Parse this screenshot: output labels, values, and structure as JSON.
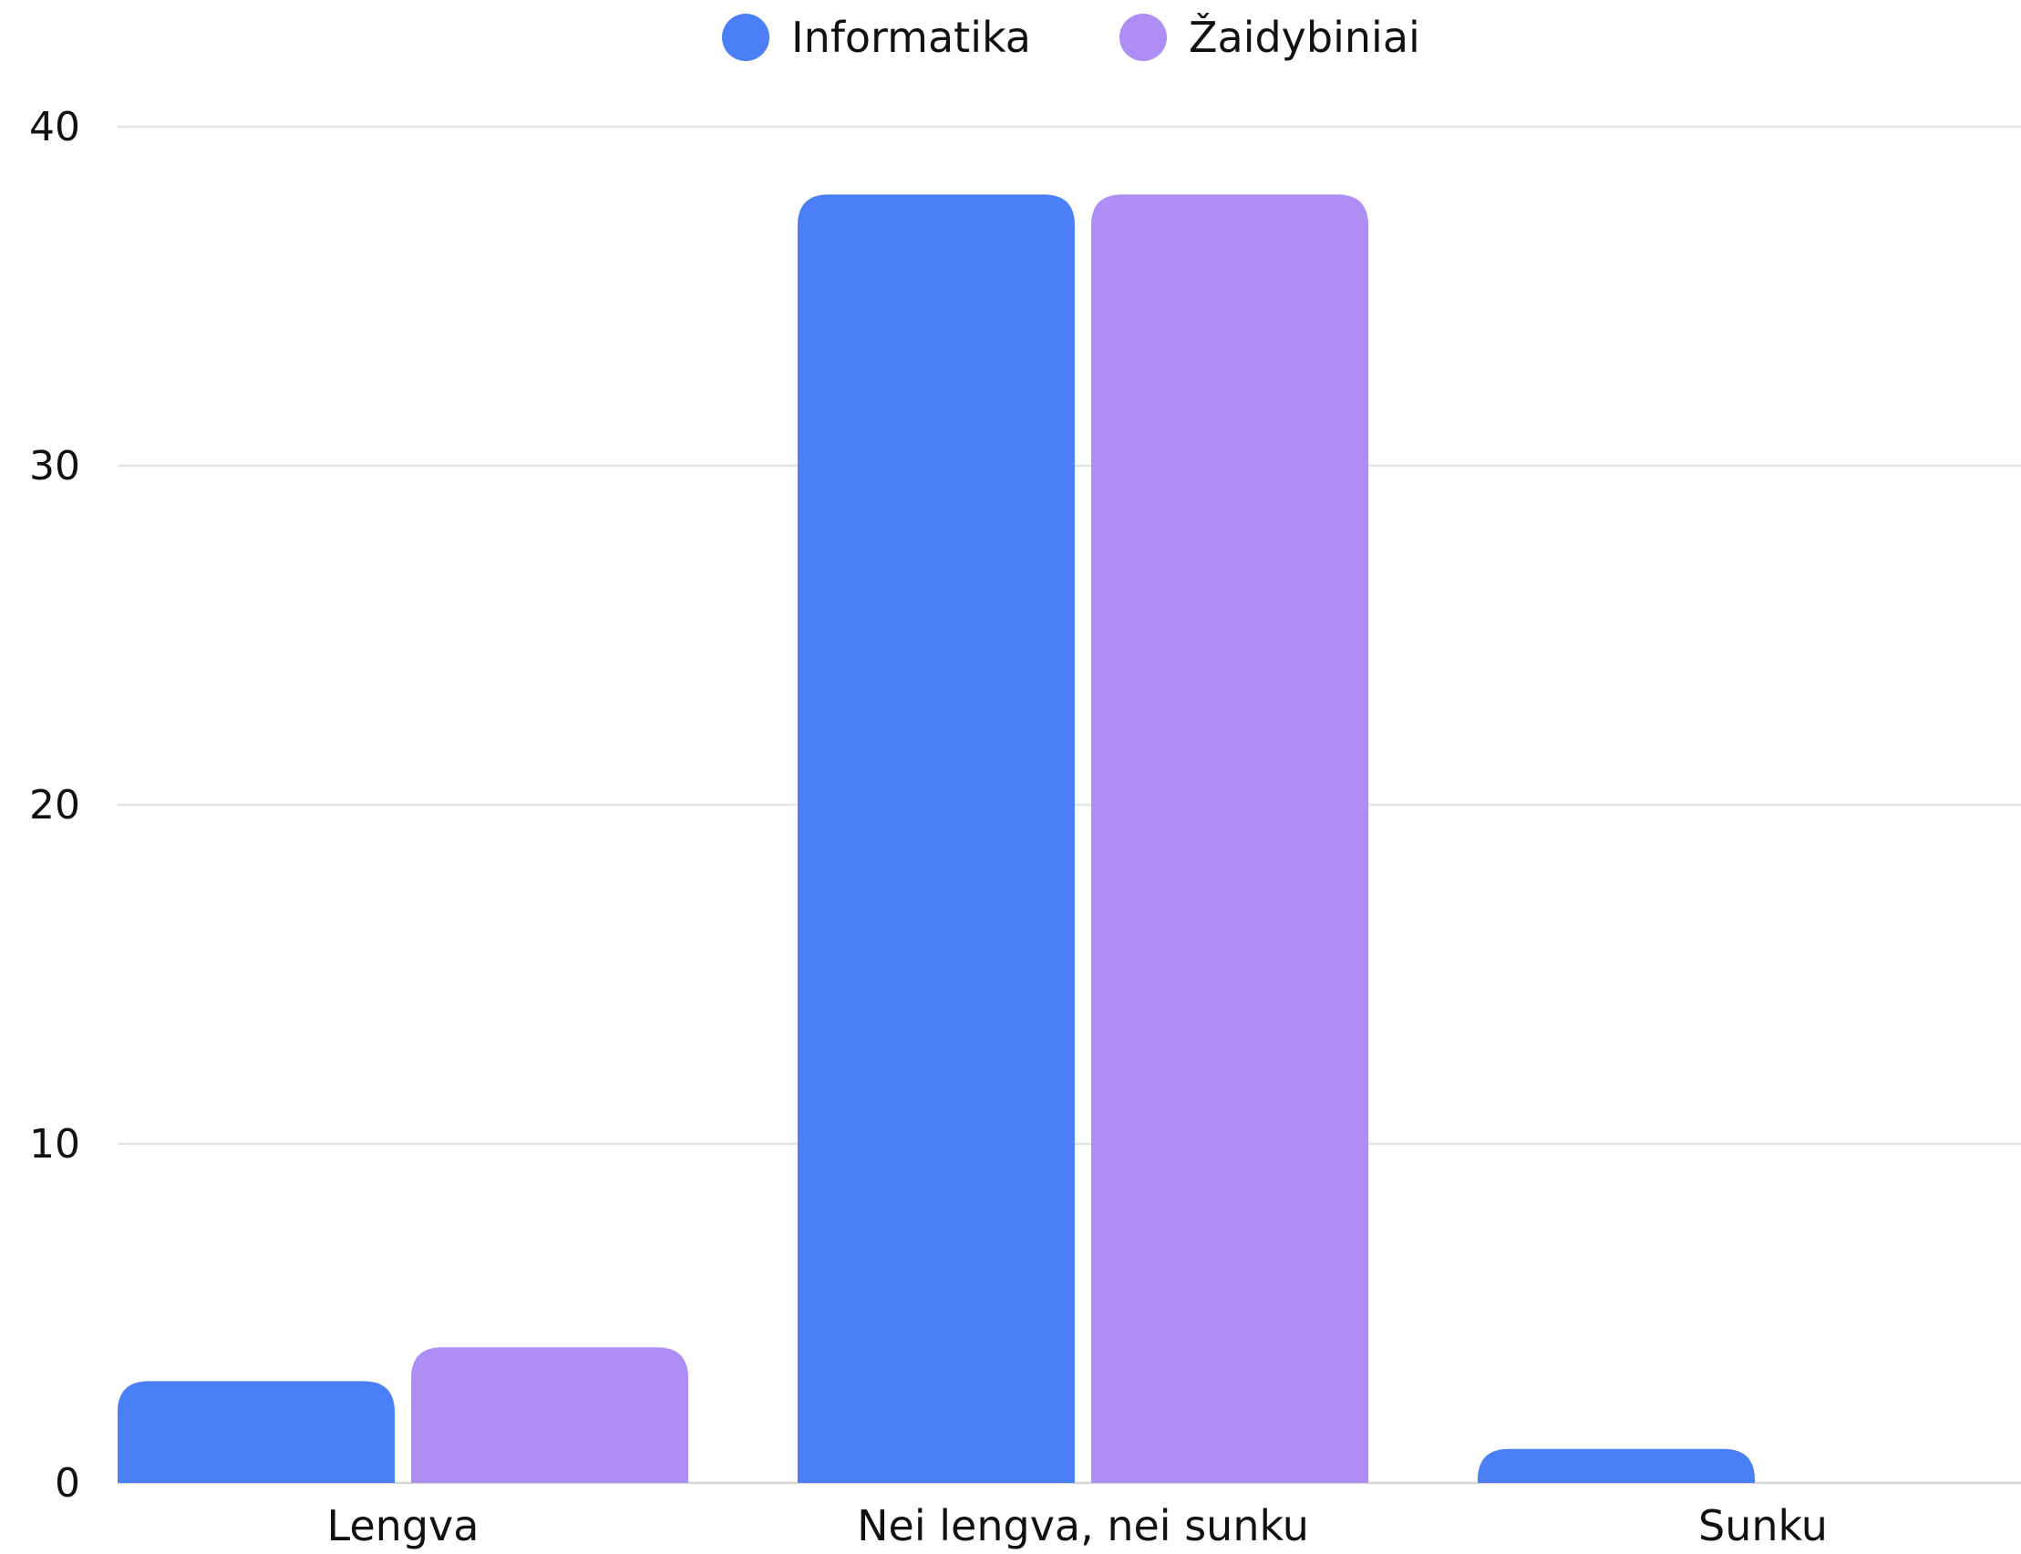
{
  "chart_data": {
    "type": "bar",
    "title": "",
    "xlabel": "",
    "ylabel": "",
    "categories": [
      "Lengva",
      "Nei lengva, nei sunku",
      "Sunku"
    ],
    "series": [
      {
        "name": "Informatika",
        "values": [
          3,
          38,
          1
        ],
        "color": "#4b7ff7"
      },
      {
        "name": "Žaidybiniai",
        "values": [
          4,
          38,
          0
        ],
        "color": "#ae8ef4"
      }
    ],
    "ylim": [
      0,
      40
    ],
    "yticks": [
      0,
      10,
      20,
      30,
      40
    ],
    "grid": true,
    "legend_position": "top-center"
  }
}
